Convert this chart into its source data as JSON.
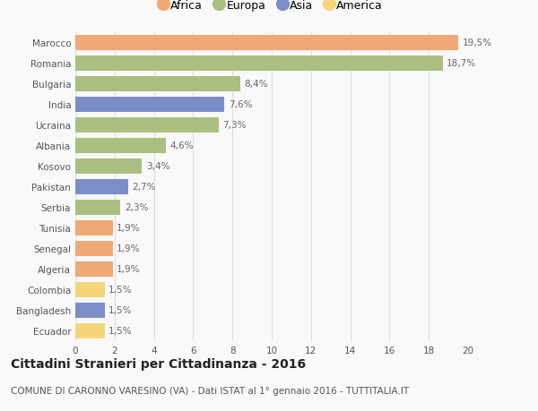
{
  "countries": [
    "Marocco",
    "Romania",
    "Bulgaria",
    "India",
    "Ucraina",
    "Albania",
    "Kosovo",
    "Pakistan",
    "Serbia",
    "Tunisia",
    "Senegal",
    "Algeria",
    "Colombia",
    "Bangladesh",
    "Ecuador"
  ],
  "values": [
    19.5,
    18.7,
    8.4,
    7.6,
    7.3,
    4.6,
    3.4,
    2.7,
    2.3,
    1.9,
    1.9,
    1.9,
    1.5,
    1.5,
    1.5
  ],
  "labels": [
    "19,5%",
    "18,7%",
    "8,4%",
    "7,6%",
    "7,3%",
    "4,6%",
    "3,4%",
    "2,7%",
    "2,3%",
    "1,9%",
    "1,9%",
    "1,9%",
    "1,5%",
    "1,5%",
    "1,5%"
  ],
  "continents": [
    "Africa",
    "Europa",
    "Europa",
    "Asia",
    "Europa",
    "Europa",
    "Europa",
    "Asia",
    "Europa",
    "Africa",
    "Africa",
    "Africa",
    "America",
    "Asia",
    "America"
  ],
  "colors": {
    "Africa": "#F0A875",
    "Europa": "#AABF80",
    "Asia": "#7B8EC8",
    "America": "#F5D57A"
  },
  "legend_order": [
    "Africa",
    "Europa",
    "Asia",
    "America"
  ],
  "title": "Cittadini Stranieri per Cittadinanza - 2016",
  "subtitle": "COMUNE DI CARONNO VARESINO (VA) - Dati ISTAT al 1° gennaio 2016 - TUTTITALIA.IT",
  "xlim": [
    0,
    20
  ],
  "xticks": [
    0,
    2,
    4,
    6,
    8,
    10,
    12,
    14,
    16,
    18,
    20
  ],
  "background_color": "#f9f9f9",
  "grid_color": "#dddddd",
  "title_fontsize": 10,
  "subtitle_fontsize": 7.5,
  "label_fontsize": 7.5,
  "tick_fontsize": 7.5,
  "legend_fontsize": 9
}
